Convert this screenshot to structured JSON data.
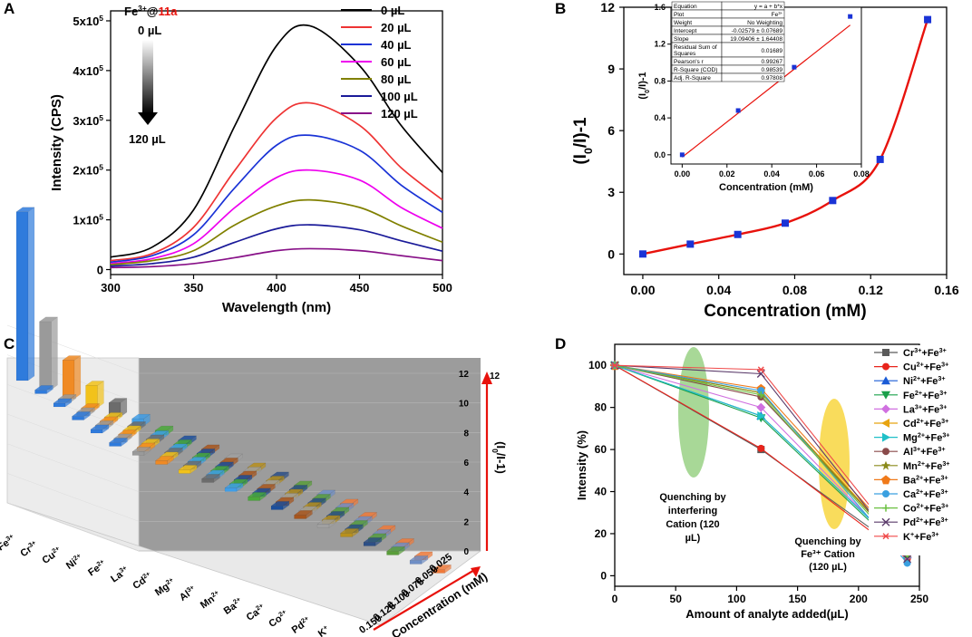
{
  "panels": {
    "A": "A",
    "B": "B",
    "C": "C",
    "D": "D"
  },
  "colors": {
    "red": "#e8120c",
    "blue": "#1a33d6",
    "green_ellipse": "#9fd48c",
    "yellow_ellipse": "#f8d84a"
  },
  "chart_data": [
    {
      "panel": "A",
      "type": "line",
      "title": "",
      "xlabel": "Wavelength (nm)",
      "ylabel": "Intensity (CPS)",
      "xlim": [
        300,
        500
      ],
      "ylim": [
        -10000,
        520000
      ],
      "x_ticks": [
        300,
        350,
        400,
        450,
        500
      ],
      "y_ticks": [
        0,
        100000,
        200000,
        300000,
        400000,
        500000
      ],
      "y_tick_labels": [
        {
          "mant": "0",
          "exp": ""
        },
        {
          "mant": "1x10",
          "exp": "5"
        },
        {
          "mant": "2x10",
          "exp": "5"
        },
        {
          "mant": "3x10",
          "exp": "5"
        },
        {
          "mant": "4x10",
          "exp": "5"
        },
        {
          "mant": "5x10",
          "exp": "5"
        }
      ],
      "legend_position": "top-right",
      "annotation": {
        "ion": "Fe",
        "charge": "3+",
        "at": "@",
        "compound": "11a",
        "start": "0 µL",
        "end": "120 µL"
      },
      "x": [
        300,
        325,
        350,
        375,
        400,
        420,
        450,
        475,
        500
      ],
      "series": [
        {
          "name": "0 µL",
          "color": "#000000",
          "values": [
            25000,
            45000,
            120000,
            290000,
            450000,
            490000,
            410000,
            290000,
            195000
          ]
        },
        {
          "name": "20 µL",
          "color": "#ee3333",
          "values": [
            18000,
            32000,
            85000,
            200000,
            305000,
            335000,
            290000,
            205000,
            140000
          ]
        },
        {
          "name": "40 µL",
          "color": "#1a33d6",
          "values": [
            15000,
            28000,
            70000,
            165000,
            250000,
            270000,
            240000,
            170000,
            115000
          ]
        },
        {
          "name": "60 µL",
          "color": "#ee00ee",
          "values": [
            12000,
            22000,
            52000,
            125000,
            185000,
            200000,
            180000,
            125000,
            83000
          ]
        },
        {
          "name": "80 µL",
          "color": "#808000",
          "values": [
            10000,
            18000,
            38000,
            90000,
            128000,
            140000,
            125000,
            88000,
            55000
          ]
        },
        {
          "name": "100 µL",
          "color": "#1a1a99",
          "values": [
            7000,
            12000,
            25000,
            55000,
            82000,
            90000,
            80000,
            58000,
            37000
          ]
        },
        {
          "name": "120 µL",
          "color": "#881188",
          "values": [
            4000,
            6000,
            12000,
            24000,
            38000,
            42000,
            38000,
            28000,
            18000
          ]
        }
      ]
    },
    {
      "panel": "B",
      "type": "line",
      "xlabel": "Concentration (mM)",
      "ylabel": "(I0/I)-1",
      "xlim": [
        -0.01,
        0.16
      ],
      "ylim": [
        -1,
        12
      ],
      "x_ticks": [
        0.0,
        0.04,
        0.08,
        0.12,
        0.16
      ],
      "x_tick_labels": [
        "0.00",
        "0.04",
        "0.08",
        "0.12",
        "0.16"
      ],
      "y_ticks": [
        0,
        3,
        6,
        9,
        12
      ],
      "series": [
        {
          "name": "main",
          "x": [
            0,
            0.025,
            0.05,
            0.075,
            0.1,
            0.125,
            0.15
          ],
          "values": [
            0,
            0.48,
            0.95,
            1.5,
            2.6,
            4.6,
            11.4
          ]
        }
      ],
      "inset": {
        "xlabel": "Concentration (mM)",
        "ylabel": "(I0/I)-1",
        "xlim": [
          -0.005,
          0.08
        ],
        "ylim": [
          -0.1,
          1.6
        ],
        "x_ticks": [
          0.0,
          0.02,
          0.04,
          0.06,
          0.08
        ],
        "x_tick_labels": [
          "0.00",
          "0.02",
          "0.04",
          "0.06",
          "0.08"
        ],
        "y_ticks": [
          0.0,
          0.4,
          0.8,
          1.2,
          1.6
        ],
        "y_tick_labels": [
          "0.0",
          "0.4",
          "0.8",
          "1.2",
          "1.6"
        ],
        "points": {
          "x": [
            0,
            0.025,
            0.05,
            0.075
          ],
          "values": [
            0.0,
            0.48,
            0.95,
            1.5
          ]
        },
        "fit": {
          "intercept": -0.02579,
          "slope": 19.09406
        },
        "table": [
          [
            "Equation",
            "y = a + b*x"
          ],
          [
            "Plot",
            "Fe3+"
          ],
          [
            "Weight",
            "No Weighting"
          ],
          [
            "Intercept",
            "-0.02579 ± 0.07689"
          ],
          [
            "Slope",
            "19.09406 ± 1.64408"
          ],
          [
            "Residual Sum of Squares",
            "0.01689"
          ],
          [
            "Pearson's r",
            "0.99267"
          ],
          [
            "R-Square (COD)",
            "0.98539"
          ],
          [
            "Adj. R-Square",
            "0.97808"
          ]
        ]
      }
    },
    {
      "panel": "C",
      "type": "bar",
      "xlabel": "Concentration (mM)",
      "zlabel": "(I0/I-1)",
      "z_ticks": [
        0,
        2,
        4,
        6,
        8,
        10,
        12
      ],
      "cations": [
        "Fe3+",
        "Cr3+",
        "Cu2+",
        "Ni2+",
        "Fe2+",
        "La3+",
        "Cd2+",
        "Mg2+",
        "Al3+",
        "Mn2+",
        "Ba2+",
        "Ca2+",
        "Co2+",
        "Pd2+",
        "K+"
      ],
      "cation_labels": [
        {
          "s": "Fe",
          "c": "3+"
        },
        {
          "s": "Cr",
          "c": "3+"
        },
        {
          "s": "Cu",
          "c": "2+"
        },
        {
          "s": "Ni",
          "c": "2+"
        },
        {
          "s": "Fe",
          "c": "2+"
        },
        {
          "s": "La",
          "c": "3+"
        },
        {
          "s": "Cd",
          "c": "2+"
        },
        {
          "s": "Mg",
          "c": "2+"
        },
        {
          "s": "Al",
          "c": "3+"
        },
        {
          "s": "Mn",
          "c": "2+"
        },
        {
          "s": "Ba",
          "c": "2+"
        },
        {
          "s": "Ca",
          "c": "2+"
        },
        {
          "s": "Co",
          "c": "2+"
        },
        {
          "s": "Pd",
          "c": "2+"
        },
        {
          "s": "K",
          "c": "+"
        }
      ],
      "concentrations": [
        "0.025",
        "0.050",
        "0.075",
        "0.100",
        "0.125",
        "0.150"
      ],
      "bar_colors": [
        "#2f7bdc",
        "#9a9a9a",
        "#f08a24",
        "#f2c21a",
        "#6c6c6c",
        "#3f9ee8",
        "#4aaa3a",
        "#1c4f9c",
        "#a8551c",
        "#a0a0a0",
        "#b8901c",
        "#2c4f86",
        "#5a9e3a",
        "#6f8fc6",
        "#f07a3a"
      ],
      "values": [
        [
          11.4,
          0.25,
          0.25,
          0.25,
          0.25,
          0.25
        ],
        [
          4.6,
          0.25,
          0.25,
          0.25,
          0.25,
          0.25
        ],
        [
          2.6,
          0.25,
          0.25,
          0.25,
          0.25,
          0.25
        ],
        [
          1.5,
          0.25,
          0.25,
          0.25,
          0.25,
          0.25
        ],
        [
          0.95,
          0.25,
          0.25,
          0.25,
          0.25,
          0.25
        ],
        [
          0.48,
          0.25,
          0.25,
          0.25,
          0.25,
          0.25
        ],
        [
          0.3,
          0.25,
          0.25,
          0.25,
          0.25,
          0.25
        ],
        [
          0.25,
          0.25,
          0.25,
          0.25,
          0.25,
          0.25
        ],
        [
          0.25,
          0.25,
          0.25,
          0.25,
          0.25,
          0.25
        ],
        [
          0.25,
          0.25,
          0.25,
          0.25,
          0.25,
          0.25
        ],
        [
          0.25,
          0.25,
          0.25,
          0.25,
          0.25,
          0.25
        ],
        [
          0.25,
          0.25,
          0.25,
          0.25,
          0.25,
          0.25
        ],
        [
          0.25,
          0.25,
          0.25,
          0.25,
          0.25,
          0.25
        ],
        [
          0.25,
          0.25,
          0.25,
          0.25,
          0.25,
          0.25
        ],
        [
          0.25,
          0.25,
          0.25,
          0.25,
          0.25,
          0.25
        ]
      ]
    },
    {
      "panel": "D",
      "type": "line",
      "xlabel": "Amount of analyte added(µL)",
      "ylabel": "Intensity (%)",
      "xlim": [
        0,
        250
      ],
      "ylim": [
        -5,
        110
      ],
      "x_ticks": [
        0,
        50,
        100,
        150,
        200,
        250
      ],
      "y_ticks": [
        0,
        20,
        40,
        60,
        80,
        100
      ],
      "x": [
        0,
        120,
        240
      ],
      "legend_position": "right",
      "annotations": [
        {
          "lines": [
            "Quenching by",
            "interfering",
            "Cation (120",
            "µL)"
          ]
        },
        {
          "lines": [
            "Quenching by",
            "Fe³⁺ Cation",
            "(120 µL)"
          ]
        }
      ],
      "series": [
        {
          "name": "Cr3+ +Fe3+",
          "m": "Cr",
          "mc": "3+",
          "color": "#5a5a5a",
          "marker": "square",
          "values": [
            100,
            60,
            10
          ]
        },
        {
          "name": "Cu2+ +Fe3+",
          "m": "Cu",
          "mc": "2+",
          "color": "#e8241c",
          "marker": "circle",
          "values": [
            100,
            60.5,
            8
          ]
        },
        {
          "name": "Ni2+ +Fe3+",
          "m": "Ni",
          "mc": "2+",
          "color": "#1a5bd6",
          "marker": "triangle-up",
          "values": [
            100,
            76,
            10
          ]
        },
        {
          "name": "Fe2+ +Fe3+",
          "m": "Fe",
          "mc": "2+",
          "color": "#1aa04a",
          "marker": "triangle-down",
          "values": [
            100,
            75,
            9
          ]
        },
        {
          "name": "La3+ +Fe3+",
          "m": "La",
          "mc": "3+",
          "color": "#d070e0",
          "marker": "diamond",
          "values": [
            100,
            80,
            9
          ]
        },
        {
          "name": "Cd2+ +Fe3+",
          "m": "Cd",
          "mc": "2+",
          "color": "#e8a410",
          "marker": "triangle-left",
          "values": [
            100,
            87,
            11
          ]
        },
        {
          "name": "Mg2+ +Fe3+",
          "m": "Mg",
          "mc": "2+",
          "color": "#20c0c8",
          "marker": "triangle-right",
          "values": [
            100,
            76,
            10
          ]
        },
        {
          "name": "Al3+ +Fe3+",
          "m": "Al",
          "mc": "3+",
          "color": "#8a4a4a",
          "marker": "hexagon",
          "values": [
            100,
            85,
            11
          ]
        },
        {
          "name": "Mn2+ +Fe3+",
          "m": "Mn",
          "mc": "2+",
          "color": "#8a8a1a",
          "marker": "star",
          "values": [
            100,
            87,
            10
          ]
        },
        {
          "name": "Ba2+ +Fe3+",
          "m": "Ba",
          "mc": "2+",
          "color": "#f07a1a",
          "marker": "pentagon",
          "values": [
            100,
            89,
            12
          ]
        },
        {
          "name": "Ca2+ +Fe3+",
          "m": "Ca",
          "mc": "2+",
          "color": "#3aa0e0",
          "marker": "circle",
          "values": [
            100,
            88,
            6
          ]
        },
        {
          "name": "Co2+ +Fe3+",
          "m": "Co",
          "mc": "2+",
          "color": "#6ac040",
          "marker": "plus",
          "values": [
            100,
            86,
            9
          ]
        },
        {
          "name": "Pd2+ +Fe3+",
          "m": "Pd",
          "mc": "2+",
          "color": "#5a3a6a",
          "marker": "x",
          "values": [
            100,
            96,
            8
          ]
        },
        {
          "name": "K+ +Fe3+",
          "m": "K",
          "mc": "+",
          "color": "#f04a4a",
          "marker": "asterisk",
          "values": [
            100,
            98,
            11
          ]
        }
      ]
    }
  ]
}
